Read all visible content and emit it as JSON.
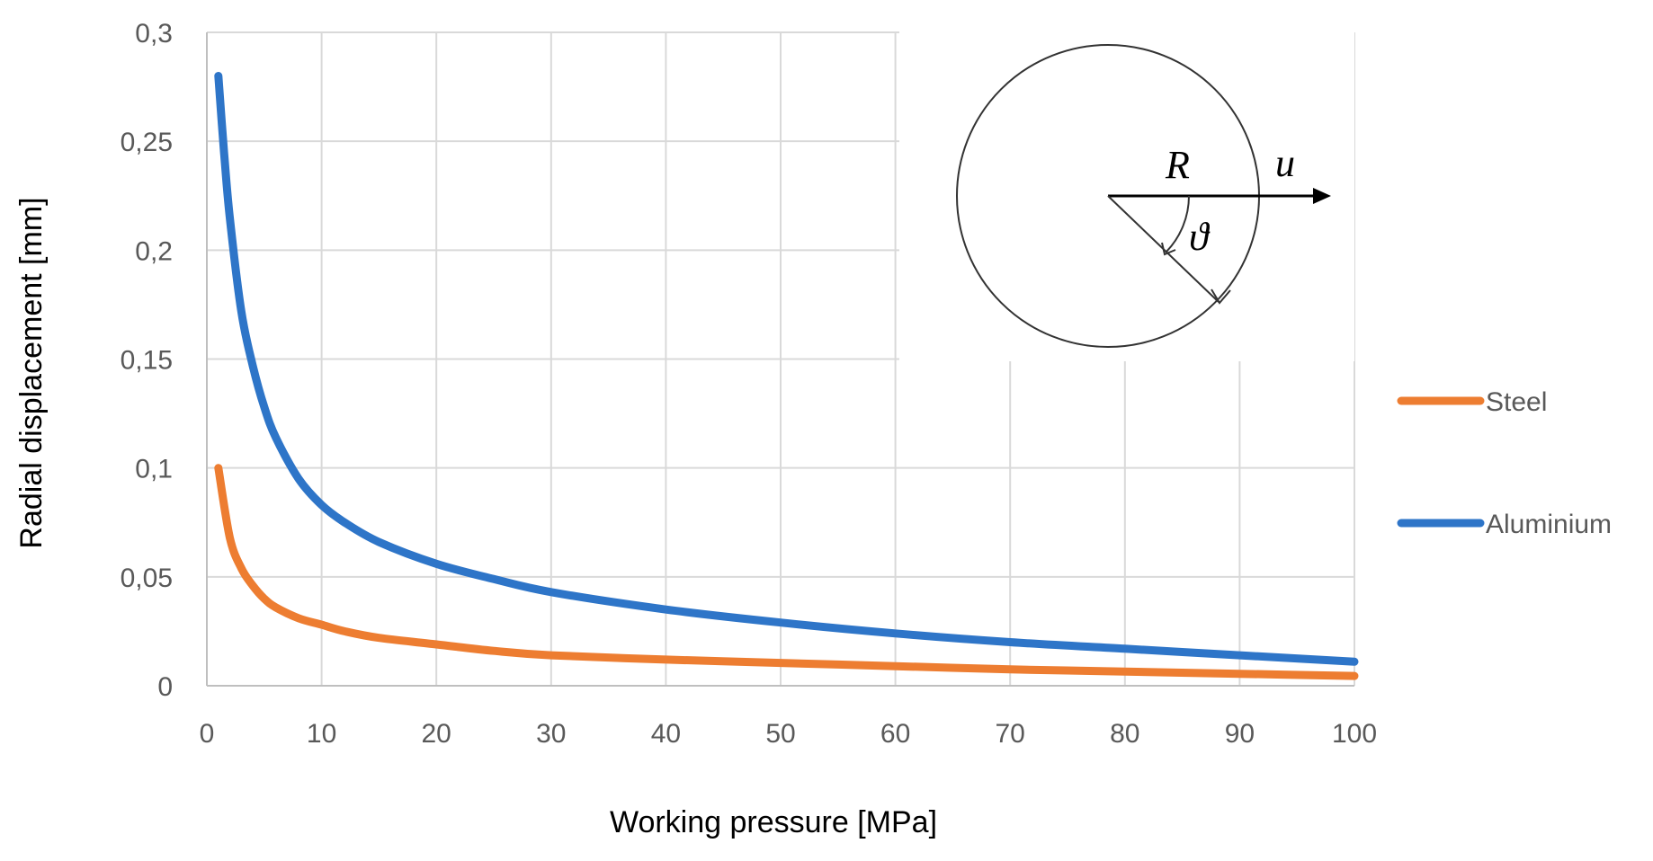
{
  "chart_data": {
    "type": "line",
    "title": "",
    "xlabel": "Working pressure  [MPa]",
    "ylabel": "Radial displacement  [mm]",
    "xlim": [
      0,
      100
    ],
    "ylim": [
      0,
      0.3
    ],
    "x_ticks": [
      0,
      10,
      20,
      30,
      40,
      50,
      60,
      70,
      80,
      90,
      100
    ],
    "x_tick_labels": [
      "0",
      "10",
      "20",
      "30",
      "40",
      "50",
      "60",
      "70",
      "80",
      "90",
      "100"
    ],
    "y_ticks": [
      0,
      0.05,
      0.1,
      0.15,
      0.2,
      0.25,
      0.3
    ],
    "y_tick_labels": [
      "0",
      "0,05",
      "0,1",
      "0,15",
      "0,2",
      "0,25",
      "0,3"
    ],
    "grid": true,
    "legend_position": "right",
    "series": [
      {
        "name": "Steel",
        "color": "#ED7D31",
        "x": [
          1,
          2,
          3,
          4,
          5,
          6,
          8,
          10,
          12,
          15,
          20,
          25,
          30,
          40,
          50,
          60,
          70,
          80,
          90,
          100
        ],
        "values": [
          0.1,
          0.068,
          0.054,
          0.046,
          0.04,
          0.036,
          0.031,
          0.028,
          0.025,
          0.022,
          0.019,
          0.016,
          0.014,
          0.012,
          0.0105,
          0.009,
          0.0075,
          0.0065,
          0.0055,
          0.0045
        ]
      },
      {
        "name": "Aluminium",
        "color": "#2E75C8",
        "x": [
          1,
          1.5,
          2,
          3,
          4,
          5,
          6,
          8,
          10,
          12,
          15,
          20,
          25,
          30,
          40,
          50,
          60,
          70,
          80,
          90,
          100
        ],
        "values": [
          0.28,
          0.245,
          0.215,
          0.172,
          0.147,
          0.128,
          0.114,
          0.095,
          0.083,
          0.075,
          0.066,
          0.056,
          0.049,
          0.043,
          0.035,
          0.029,
          0.024,
          0.02,
          0.017,
          0.014,
          0.011
        ]
      }
    ]
  },
  "inset": {
    "radius_label": "R",
    "displacement_label": "u",
    "angle_label": "ϑ"
  }
}
